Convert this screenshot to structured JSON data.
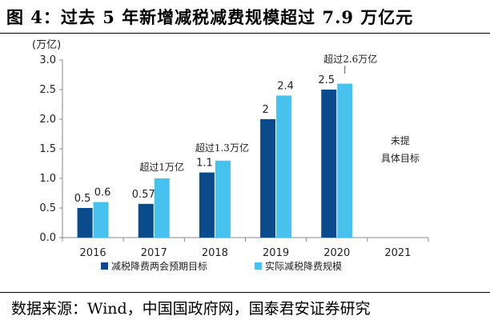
{
  "header": {
    "title": "图 4：过去 5 年新增减税减费规模超过 7.9 万亿元"
  },
  "footer": {
    "source": "数据来源：Wind，中国国政府网，国泰君安证券研究"
  },
  "chart_data": {
    "type": "bar",
    "ylabel": "(万亿)",
    "ylim": [
      0,
      3.0
    ],
    "yticks": [
      "0.0",
      "0.5",
      "1.0",
      "1.5",
      "2.0",
      "2.5",
      "3.0"
    ],
    "categories": [
      "2016",
      "2017",
      "2018",
      "2019",
      "2020",
      "2021"
    ],
    "colors": [
      "#0b4a8b",
      "#47c1ee"
    ],
    "legend_position": "bottom",
    "grid": false,
    "series": [
      {
        "name": "减税降费两会预期目标",
        "values": [
          0.5,
          0.57,
          1.1,
          2,
          2.5,
          null
        ],
        "labels": [
          "0.5",
          "0.57",
          "1.1",
          "2",
          "2.5",
          ""
        ]
      },
      {
        "name": "实际减税降费规模",
        "values": [
          0.6,
          1.0,
          1.3,
          2.4,
          2.6,
          null
        ],
        "labels": [
          "0.6",
          "",
          "",
          "2.4",
          "",
          ""
        ]
      }
    ],
    "annotations": [
      {
        "text": "超过1万亿",
        "category": "2017"
      },
      {
        "text": "超过1.3万亿",
        "category": "2018"
      },
      {
        "text": "超过2.6万亿",
        "category": "2020"
      },
      {
        "text": "未提",
        "category": "2021"
      },
      {
        "text": "具体目标",
        "category": "2021"
      }
    ]
  }
}
